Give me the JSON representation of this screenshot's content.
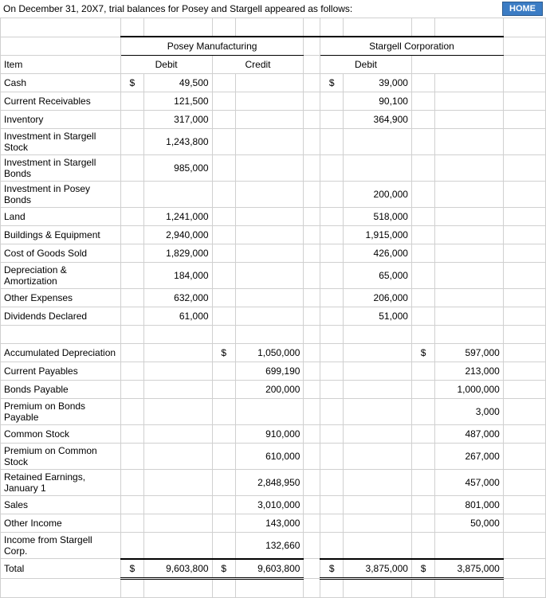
{
  "header": {
    "text": "On December 31, 20X7, trial balances for Posey and Stargell appeared as follows:",
    "home_label": "HOME"
  },
  "columns": {
    "company1": "Posey Manufacturing",
    "company2": "Stargell Corporation",
    "item": "Item",
    "debit": "Debit",
    "credit": "Credit"
  },
  "currency": "$",
  "rows": [
    {
      "item": "Cash",
      "pd": "49,500",
      "pc": "",
      "sd": "39,000",
      "sc": "",
      "pd_sym": "$",
      "sd_sym": "$"
    },
    {
      "item": "Current Receivables",
      "pd": "121,500",
      "pc": "",
      "sd": "90,100",
      "sc": ""
    },
    {
      "item": "Inventory",
      "pd": "317,000",
      "pc": "",
      "sd": "364,900",
      "sc": ""
    },
    {
      "item": "Investment in Stargell Stock",
      "pd": "1,243,800",
      "pc": "",
      "sd": "",
      "sc": ""
    },
    {
      "item": "Investment in Stargell Bonds",
      "pd": "985,000",
      "pc": "",
      "sd": "",
      "sc": ""
    },
    {
      "item": "Investment in Posey Bonds",
      "pd": "",
      "pc": "",
      "sd": "200,000",
      "sc": ""
    },
    {
      "item": "Land",
      "pd": "1,241,000",
      "pc": "",
      "sd": "518,000",
      "sc": ""
    },
    {
      "item": "Buildings & Equipment",
      "pd": "2,940,000",
      "pc": "",
      "sd": "1,915,000",
      "sc": ""
    },
    {
      "item": "Cost of Goods Sold",
      "pd": "1,829,000",
      "pc": "",
      "sd": "426,000",
      "sc": ""
    },
    {
      "item": "Depreciation & Amortization",
      "pd": "184,000",
      "pc": "",
      "sd": "65,000",
      "sc": ""
    },
    {
      "item": "Other Expenses",
      "pd": "632,000",
      "pc": "",
      "sd": "206,000",
      "sc": ""
    },
    {
      "item": "Dividends Declared",
      "pd": "61,000",
      "pc": "",
      "sd": "51,000",
      "sc": ""
    }
  ],
  "rows2": [
    {
      "item": "Accumulated Depreciation",
      "pd": "",
      "pc": "1,050,000",
      "sd": "",
      "sc": "597,000",
      "pc_sym": "$",
      "sc_sym": "$"
    },
    {
      "item": "Current Payables",
      "pd": "",
      "pc": "699,190",
      "sd": "",
      "sc": "213,000"
    },
    {
      "item": "Bonds Payable",
      "pd": "",
      "pc": "200,000",
      "sd": "",
      "sc": "1,000,000"
    },
    {
      "item": "Premium on Bonds Payable",
      "pd": "",
      "pc": "",
      "sd": "",
      "sc": "3,000"
    },
    {
      "item": "Common Stock",
      "pd": "",
      "pc": "910,000",
      "sd": "",
      "sc": "487,000"
    },
    {
      "item": "Premium on Common Stock",
      "pd": "",
      "pc": "610,000",
      "sd": "",
      "sc": "267,000"
    },
    {
      "item": "Retained Earnings, January 1",
      "pd": "",
      "pc": "2,848,950",
      "sd": "",
      "sc": "457,000"
    },
    {
      "item": "Sales",
      "pd": "",
      "pc": "3,010,000",
      "sd": "",
      "sc": "801,000"
    },
    {
      "item": "Other Income",
      "pd": "",
      "pc": "143,000",
      "sd": "",
      "sc": "50,000"
    },
    {
      "item": "Income from Stargell Corp.",
      "pd": "",
      "pc": "132,660",
      "sd": "",
      "sc": ""
    }
  ],
  "total": {
    "item": "Total",
    "pd": "9,603,800",
    "pc": "9,603,800",
    "sd": "3,875,000",
    "sc": "3,875,000",
    "pd_sym": "$",
    "pc_sym": "$",
    "sd_sym": "$",
    "sc_sym": "$"
  }
}
